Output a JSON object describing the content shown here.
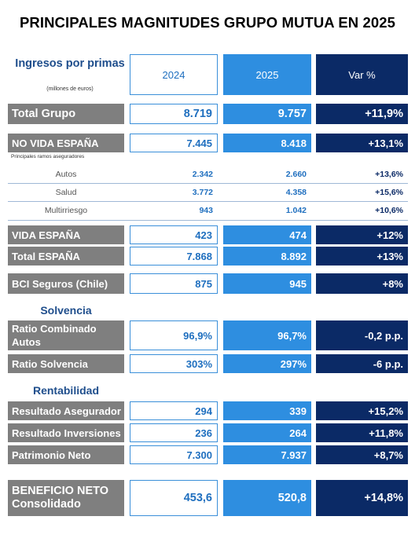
{
  "title": "PRINCIPALES MAGNITUDES GRUPO MUTUA EN 2025",
  "header": {
    "label": "Ingresos por primas",
    "sublabel": "(millones de euros)",
    "col_2024": "2024",
    "col_2025": "2025",
    "col_var": "Var %"
  },
  "note": "Principales ramos aseguradores",
  "rows": {
    "total_grupo": {
      "label": "Total Grupo",
      "v2024": "8.719",
      "v2025": "9.757",
      "var": "+11,9%"
    },
    "no_vida": {
      "label": "NO VIDA ESPAÑA",
      "v2024": "7.445",
      "v2025": "8.418",
      "var": "+13,1%"
    },
    "autos": {
      "label": "Autos",
      "v2024": "2.342",
      "v2025": "2.660",
      "var": "+13,6%"
    },
    "salud": {
      "label": "Salud",
      "v2024": "3.772",
      "v2025": "4.358",
      "var": "+15,6%"
    },
    "multirriesgo": {
      "label": "Multirriesgo",
      "v2024": "943",
      "v2025": "1.042",
      "var": "+10,6%"
    },
    "vida": {
      "label": "VIDA ESPAÑA",
      "v2024": "423",
      "v2025": "474",
      "var": "+12%"
    },
    "total_espana": {
      "label": "Total ESPAÑA",
      "v2024": "7.868",
      "v2025": "8.892",
      "var": "+13%"
    },
    "bci": {
      "label": "BCI Seguros (Chile)",
      "v2024": "875",
      "v2025": "945",
      "var": "+8%"
    }
  },
  "solvencia": {
    "heading": "Solvencia",
    "ratio_combinado": {
      "label": "Ratio Combinado Autos",
      "v2024": "96,9%",
      "v2025": "96,7%",
      "var": "-0,2 p.p."
    },
    "ratio_solvencia": {
      "label": "Ratio Solvencia",
      "v2024": "303%",
      "v2025": "297%",
      "var": "-6 p.p."
    }
  },
  "rentabilidad": {
    "heading": "Rentabilidad",
    "resultado_asegurador": {
      "label": "Resultado Asegurador",
      "v2024": "294",
      "v2025": "339",
      "var": "+15,2%"
    },
    "resultado_inversiones": {
      "label": "Resultado Inversiones",
      "v2024": "236",
      "v2025": "264",
      "var": "+11,8%"
    },
    "patrimonio_neto": {
      "label": "Patrimonio Neto",
      "v2024": "7.300",
      "v2025": "7.937",
      "var": "+8,7%"
    }
  },
  "beneficio": {
    "label": "BENEFICIO NETO Consolidado",
    "v2024": "453,6",
    "v2025": "520,8",
    "var": "+14,8%"
  },
  "colors": {
    "gray_label": "#7f7f7f",
    "light_blue": "#2e8ee0",
    "navy": "#0b2a66",
    "heading_blue": "#1f4e8c"
  }
}
